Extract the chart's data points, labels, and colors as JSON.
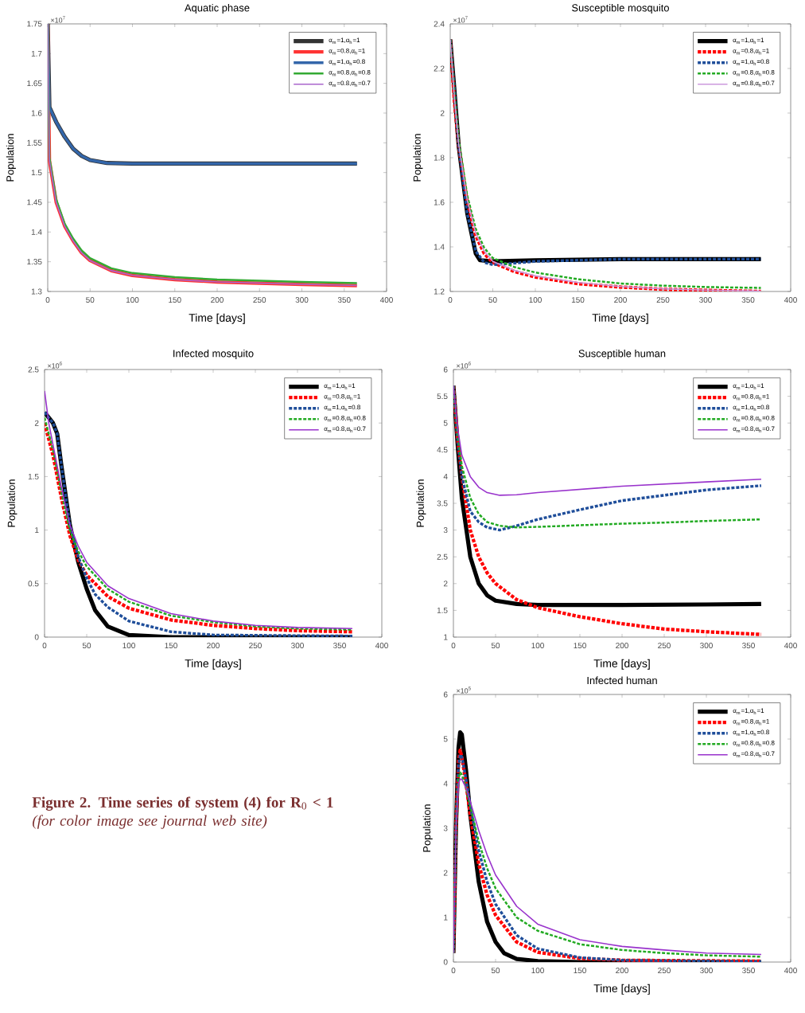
{
  "chart_data": [
    {
      "type": "line",
      "title": "Aquatic phase",
      "xlabel": "Time [days]",
      "ylabel": "Population",
      "xlim": [
        0,
        400
      ],
      "xticks": [
        0,
        50,
        100,
        150,
        200,
        250,
        300,
        350,
        400
      ],
      "ylim": [
        1.3,
        1.75
      ],
      "yticks": [
        1.3,
        1.35,
        1.4,
        1.45,
        1.5,
        1.55,
        1.6,
        1.65,
        1.7,
        1.75
      ],
      "legend": "top right",
      "grid": false,
      "annotations": [
        "×10$^{7}$"
      ],
      "series": [
        {
          "name": "α$_{m}$=1,α$_{h}$=1",
          "color": "#333333",
          "line_style": "solid",
          "x": [
            0,
            2,
            10,
            20,
            30,
            40,
            50,
            70,
            100,
            365
          ],
          "values": [
            1.75,
            1.61,
            1.585,
            1.56,
            1.54,
            1.528,
            1.521,
            1.516,
            1.515,
            1.515
          ]
        },
        {
          "name": "α$_{m}$=0.8,α$_{h}$=1",
          "color": "#ff3333",
          "line_style": "solid",
          "x": [
            0,
            2,
            10,
            20,
            30,
            40,
            50,
            75,
            100,
            150,
            200,
            250,
            300,
            365
          ],
          "values": [
            1.75,
            1.52,
            1.45,
            1.41,
            1.385,
            1.365,
            1.352,
            1.335,
            1.327,
            1.32,
            1.316,
            1.314,
            1.312,
            1.31
          ]
        },
        {
          "name": "α$_{m}$=1,α$_{h}$=0.8",
          "color": "#3366aa",
          "line_style": "solid",
          "x": [
            0,
            2,
            10,
            20,
            30,
            40,
            50,
            70,
            100,
            365
          ],
          "values": [
            1.75,
            1.61,
            1.585,
            1.56,
            1.54,
            1.528,
            1.521,
            1.516,
            1.515,
            1.515
          ]
        },
        {
          "name": "α$_{m}$=0.8,α$_{h}$=0.8",
          "color": "#33aa33",
          "line_style": "solid",
          "x": [
            0,
            2,
            10,
            20,
            30,
            40,
            50,
            75,
            100,
            150,
            200,
            250,
            300,
            365
          ],
          "values": [
            1.75,
            1.525,
            1.455,
            1.414,
            1.389,
            1.369,
            1.356,
            1.339,
            1.331,
            1.324,
            1.32,
            1.318,
            1.316,
            1.314
          ]
        },
        {
          "name": "α$_{m}$=0.8,α$_{h}$=0.7",
          "color": "#aa66cc",
          "line_style": "solid",
          "x": [
            0,
            2,
            10,
            20,
            30,
            40,
            50,
            75,
            100,
            150,
            200,
            250,
            300,
            365
          ],
          "values": [
            1.75,
            1.52,
            1.45,
            1.41,
            1.385,
            1.365,
            1.352,
            1.335,
            1.327,
            1.32,
            1.316,
            1.314,
            1.312,
            1.31
          ]
        }
      ]
    },
    {
      "type": "line",
      "title": "Susceptible mosquito",
      "xlabel": "Time [days]",
      "ylabel": "Population",
      "xlim": [
        0,
        400
      ],
      "xticks": [
        0,
        50,
        100,
        150,
        200,
        250,
        300,
        350,
        400
      ],
      "ylim": [
        1.2,
        2.4
      ],
      "yticks": [
        1.2,
        1.4,
        1.6,
        1.8,
        2,
        2.2,
        2.4
      ],
      "legend": "top right",
      "grid": false,
      "annotations": [
        "×10$^{7}$"
      ],
      "series": [
        {
          "name": "α$_{m}$=1,α$_{h}$=1",
          "color": "#000000",
          "line_style": "solid",
          "x": [
            0,
            5,
            10,
            20,
            30,
            35,
            50,
            100,
            200,
            365
          ],
          "values": [
            2.33,
            2.1,
            1.85,
            1.55,
            1.37,
            1.34,
            1.335,
            1.34,
            1.345,
            1.345
          ]
        },
        {
          "name": "α$_{m}$=0.8,α$_{h}$=1",
          "color": "#ff0000",
          "line_style": "dotted",
          "x": [
            0,
            5,
            10,
            20,
            30,
            40,
            50,
            75,
            100,
            150,
            200,
            250,
            300,
            365
          ],
          "values": [
            2.33,
            2.05,
            1.85,
            1.6,
            1.45,
            1.37,
            1.33,
            1.29,
            1.265,
            1.235,
            1.22,
            1.21,
            1.205,
            1.2
          ]
        },
        {
          "name": "α$_{m}$=1,α$_{h}$=0.8",
          "color": "#1f4e9a",
          "line_style": "dashed",
          "x": [
            0,
            5,
            10,
            20,
            30,
            40,
            50,
            70,
            100,
            200,
            365
          ],
          "values": [
            2.33,
            2.1,
            1.85,
            1.55,
            1.38,
            1.33,
            1.32,
            1.325,
            1.335,
            1.345,
            1.345
          ]
        },
        {
          "name": "α$_{m}$=0.8,α$_{h}$=0.8",
          "color": "#22aa22",
          "line_style": "dashed",
          "x": [
            0,
            5,
            10,
            20,
            30,
            40,
            50,
            75,
            100,
            150,
            200,
            250,
            300,
            365
          ],
          "values": [
            2.33,
            2.08,
            1.88,
            1.63,
            1.48,
            1.395,
            1.35,
            1.31,
            1.285,
            1.255,
            1.236,
            1.226,
            1.22,
            1.216
          ]
        },
        {
          "name": "α$_{m}$=0.8,α$_{h}$=0.7",
          "color": "#cc99dd",
          "line_style": "solid",
          "x": [
            0,
            5,
            10,
            20,
            30,
            40,
            50,
            75,
            100,
            150,
            200,
            250,
            300,
            365
          ],
          "values": [
            2.33,
            2.06,
            1.86,
            1.61,
            1.46,
            1.38,
            1.335,
            1.295,
            1.27,
            1.24,
            1.222,
            1.212,
            1.206,
            1.202
          ]
        }
      ]
    },
    {
      "type": "line",
      "title": "Infected mosquito",
      "xlabel": "Time [days]",
      "ylabel": "Population",
      "xlim": [
        0,
        400
      ],
      "xticks": [
        0,
        50,
        100,
        150,
        200,
        250,
        300,
        350,
        400
      ],
      "ylim": [
        0,
        2.5
      ],
      "yticks": [
        0,
        0.5,
        1,
        1.5,
        2,
        2.5
      ],
      "legend": "top right",
      "grid": false,
      "annotations": [
        "×10$^{6}$"
      ],
      "series": [
        {
          "name": "α$_{m}$=1,α$_{h}$=1",
          "color": "#000000",
          "line_style": "solid",
          "x": [
            0,
            5,
            10,
            15,
            20,
            30,
            40,
            50,
            60,
            75,
            100,
            150,
            365
          ],
          "values": [
            2.1,
            2.05,
            2.0,
            1.9,
            1.6,
            1.05,
            0.7,
            0.45,
            0.25,
            0.1,
            0.02,
            0,
            0
          ]
        },
        {
          "name": "α$_{m}$=0.8,α$_{h}$=1",
          "color": "#ff0000",
          "line_style": "dotted",
          "x": [
            0,
            10,
            20,
            30,
            40,
            50,
            75,
            100,
            150,
            200,
            250,
            300,
            365
          ],
          "values": [
            2.0,
            1.7,
            1.3,
            0.95,
            0.72,
            0.58,
            0.38,
            0.27,
            0.16,
            0.11,
            0.08,
            0.06,
            0.05
          ]
        },
        {
          "name": "α$_{m}$=1,α$_{h}$=0.8",
          "color": "#1f4e9a",
          "line_style": "dashed",
          "x": [
            0,
            5,
            10,
            15,
            20,
            30,
            40,
            50,
            60,
            75,
            100,
            150,
            200,
            365
          ],
          "values": [
            2.1,
            2.05,
            2.0,
            1.9,
            1.6,
            1.05,
            0.75,
            0.55,
            0.4,
            0.28,
            0.15,
            0.05,
            0.02,
            0.01
          ]
        },
        {
          "name": "α$_{m}$=0.8,α$_{h}$=0.8",
          "color": "#22aa22",
          "line_style": "dashed",
          "x": [
            0,
            10,
            20,
            30,
            40,
            50,
            75,
            100,
            150,
            200,
            250,
            300,
            365
          ],
          "values": [
            2.05,
            1.75,
            1.35,
            1.0,
            0.8,
            0.66,
            0.45,
            0.33,
            0.2,
            0.14,
            0.1,
            0.08,
            0.07
          ]
        },
        {
          "name": "α$_{m}$=0.8,α$_{h}$=0.7",
          "color": "#9933cc",
          "line_style": "solid",
          "x": [
            0,
            5,
            10,
            20,
            30,
            40,
            50,
            75,
            100,
            150,
            200,
            250,
            300,
            365
          ],
          "values": [
            2.3,
            2.0,
            1.8,
            1.4,
            1.05,
            0.85,
            0.7,
            0.48,
            0.36,
            0.22,
            0.15,
            0.11,
            0.09,
            0.08
          ]
        }
      ]
    },
    {
      "type": "line",
      "title": "Susceptible human",
      "xlabel": "Time [days]",
      "ylabel": "Population",
      "xlim": [
        0,
        400
      ],
      "xticks": [
        0,
        50,
        100,
        150,
        200,
        250,
        300,
        350,
        400
      ],
      "ylim": [
        1,
        6
      ],
      "yticks": [
        1,
        1.5,
        2,
        2.5,
        3,
        3.5,
        4,
        4.5,
        5,
        5.5,
        6
      ],
      "legend": "top right",
      "grid": false,
      "annotations": [
        "×10$^{6}$"
      ],
      "series": [
        {
          "name": "α$_{m}$=1,α$_{h}$=1",
          "color": "#000000",
          "line_style": "solid",
          "x": [
            0,
            5,
            10,
            20,
            30,
            40,
            50,
            75,
            100,
            200,
            300,
            365
          ],
          "values": [
            5.7,
            4.6,
            3.6,
            2.5,
            2.0,
            1.78,
            1.68,
            1.62,
            1.6,
            1.6,
            1.61,
            1.62
          ]
        },
        {
          "name": "α$_{m}$=0.8,α$_{h}$=1",
          "color": "#ff0000",
          "line_style": "dotted",
          "x": [
            0,
            5,
            10,
            20,
            30,
            40,
            50,
            75,
            100,
            150,
            200,
            250,
            300,
            365
          ],
          "values": [
            5.7,
            4.7,
            4.0,
            3.0,
            2.5,
            2.2,
            2.0,
            1.7,
            1.55,
            1.38,
            1.25,
            1.15,
            1.1,
            1.05
          ]
        },
        {
          "name": "α$_{m}$=1,α$_{h}$=0.8",
          "color": "#1f4e9a",
          "line_style": "dashed",
          "x": [
            0,
            5,
            10,
            20,
            30,
            40,
            55,
            75,
            100,
            150,
            200,
            250,
            300,
            365
          ],
          "values": [
            5.7,
            4.7,
            4.0,
            3.35,
            3.15,
            3.05,
            3.0,
            3.08,
            3.2,
            3.38,
            3.55,
            3.65,
            3.75,
            3.83
          ]
        },
        {
          "name": "α$_{m}$=0.8,α$_{h}$=0.8",
          "color": "#22aa22",
          "line_style": "dashed",
          "x": [
            0,
            5,
            10,
            20,
            30,
            40,
            55,
            75,
            100,
            150,
            200,
            250,
            300,
            365
          ],
          "values": [
            5.7,
            4.8,
            4.2,
            3.6,
            3.3,
            3.15,
            3.08,
            3.05,
            3.06,
            3.09,
            3.12,
            3.14,
            3.17,
            3.2
          ]
        },
        {
          "name": "α$_{m}$=0.8,α$_{h}$=0.7",
          "color": "#9933cc",
          "line_style": "solid",
          "x": [
            0,
            5,
            10,
            20,
            30,
            40,
            55,
            75,
            100,
            150,
            200,
            250,
            300,
            365
          ],
          "values": [
            5.7,
            4.9,
            4.4,
            4.0,
            3.8,
            3.7,
            3.65,
            3.66,
            3.7,
            3.76,
            3.82,
            3.86,
            3.9,
            3.95
          ]
        }
      ]
    },
    {
      "type": "line",
      "title": "Infected human",
      "xlabel": "Time [days]",
      "ylabel": "Population",
      "xlim": [
        0,
        400
      ],
      "xticks": [
        0,
        50,
        100,
        150,
        200,
        250,
        300,
        350,
        400
      ],
      "ylim": [
        0,
        6
      ],
      "yticks": [
        0,
        1,
        2,
        3,
        4,
        5,
        6
      ],
      "legend": "top right",
      "grid": false,
      "annotations": [
        "×10$^{5}$",
        "**Figure 2. Time series of system (4) for R**$_{0}$ **< 1** *(for color image see journal web site)*"
      ],
      "series": [
        {
          "name": "α$_{m}$=1,α$_{h}$=1",
          "color": "#000000",
          "line_style": "solid",
          "x": [
            0,
            3,
            6,
            8,
            10,
            15,
            20,
            30,
            40,
            50,
            60,
            75,
            100,
            150,
            365
          ],
          "values": [
            0.2,
            3.0,
            4.8,
            5.15,
            5.1,
            4.3,
            3.3,
            1.8,
            0.9,
            0.45,
            0.2,
            0.07,
            0.02,
            0,
            0
          ]
        },
        {
          "name": "α$_{m}$=0.8,α$_{h}$=1",
          "color": "#ff0000",
          "line_style": "dotted",
          "x": [
            0,
            3,
            6,
            8,
            10,
            15,
            20,
            30,
            40,
            50,
            75,
            100,
            150,
            200,
            365
          ],
          "values": [
            0.2,
            3.0,
            4.5,
            4.75,
            4.6,
            4.0,
            3.3,
            2.2,
            1.5,
            1.05,
            0.45,
            0.22,
            0.08,
            0.04,
            0.02
          ]
        },
        {
          "name": "α$_{m}$=1,α$_{h}$=0.8",
          "color": "#1f4e9a",
          "line_style": "dashed",
          "x": [
            0,
            3,
            6,
            8,
            10,
            15,
            20,
            30,
            40,
            50,
            75,
            100,
            150,
            200,
            365
          ],
          "values": [
            0.2,
            3.0,
            4.4,
            4.65,
            4.6,
            4.1,
            3.5,
            2.5,
            1.8,
            1.3,
            0.6,
            0.3,
            0.1,
            0.04,
            0.01
          ]
        },
        {
          "name": "α$_{m}$=0.8,α$_{h}$=0.8",
          "color": "#22aa22",
          "line_style": "dashed",
          "x": [
            0,
            3,
            6,
            8,
            10,
            15,
            20,
            30,
            40,
            50,
            75,
            100,
            150,
            200,
            250,
            300,
            365
          ],
          "values": [
            0.2,
            3.0,
            4.1,
            4.25,
            4.2,
            3.9,
            3.5,
            2.7,
            2.1,
            1.65,
            1.0,
            0.7,
            0.4,
            0.27,
            0.2,
            0.15,
            0.12
          ]
        },
        {
          "name": "α$_{m}$=0.8,α$_{h}$=0.7",
          "color": "#9933cc",
          "line_style": "solid",
          "x": [
            0,
            3,
            6,
            8,
            10,
            15,
            20,
            30,
            40,
            50,
            75,
            100,
            150,
            200,
            250,
            300,
            365
          ],
          "values": [
            0.2,
            3.0,
            4.0,
            4.1,
            4.1,
            3.9,
            3.6,
            2.95,
            2.4,
            1.95,
            1.25,
            0.85,
            0.5,
            0.35,
            0.27,
            0.2,
            0.17
          ]
        }
      ]
    }
  ]
}
